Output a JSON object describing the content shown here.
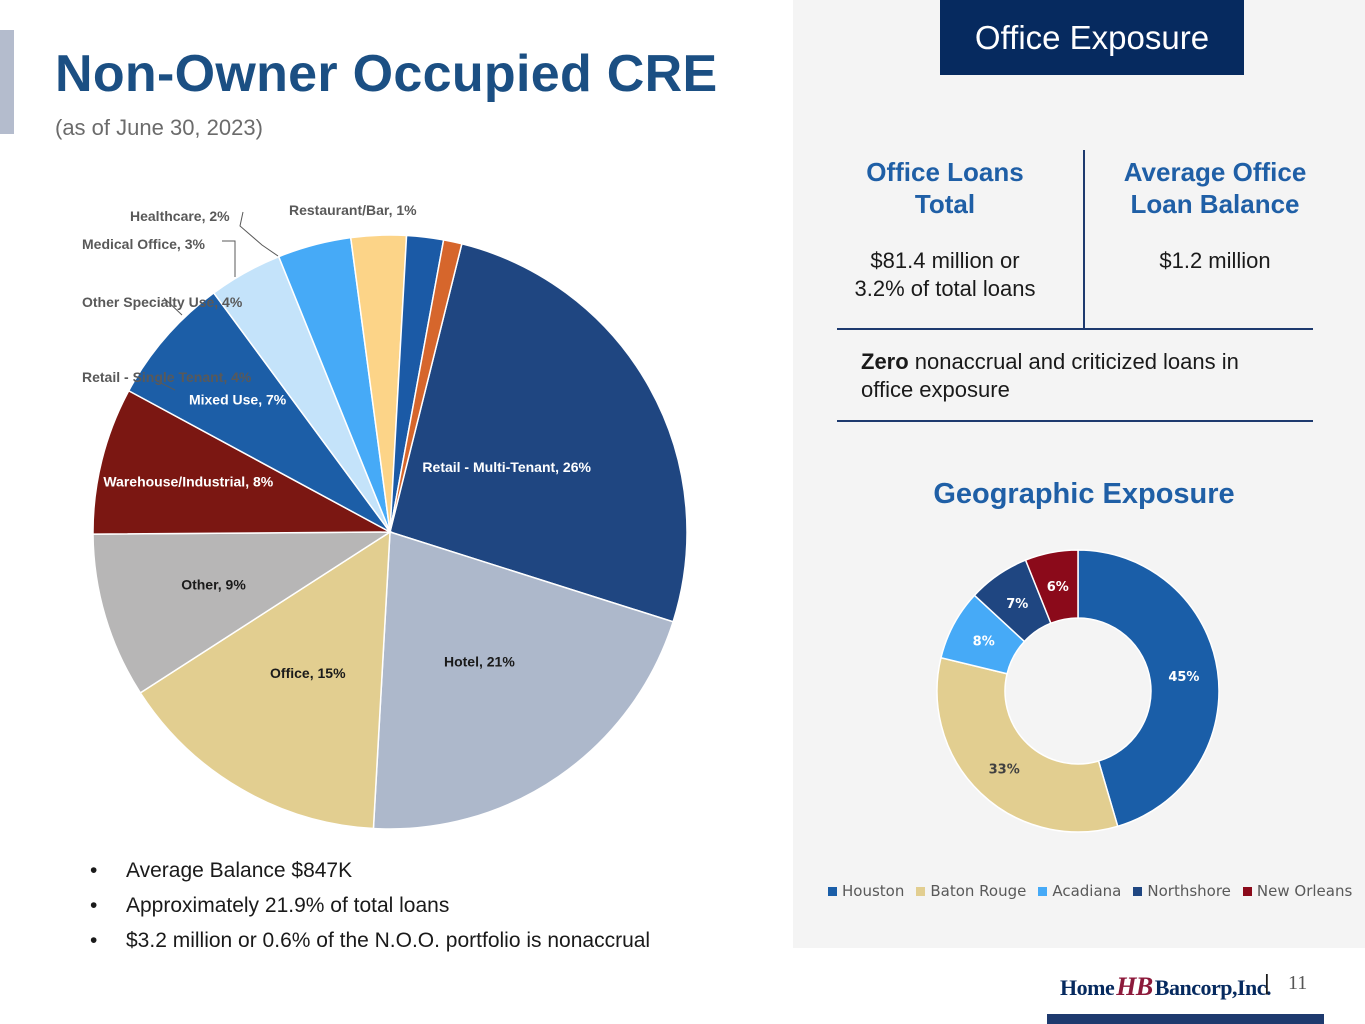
{
  "header": {
    "title": "Non-Owner Occupied CRE",
    "subtitle": "(as of June 30, 2023)"
  },
  "chart_data": [
    {
      "type": "pie",
      "title": "Non-Owner Occupied CRE",
      "categories": [
        "Retail - Multi-Tenant",
        "Hotel",
        "Office",
        "Other",
        "Warehouse/Industrial",
        "Mixed Use",
        "Retail - Single Tenant",
        "Other Specialty Use",
        "Medical Office",
        "Healthcare",
        "Restaurant/Bar"
      ],
      "values": [
        26,
        21,
        15,
        9,
        8,
        7,
        4,
        4,
        3,
        2,
        1
      ],
      "labels": [
        "Retail - Multi-Tenant, 26%",
        "Hotel, 21%",
        "Office, 15%",
        "Other, 9%",
        "Warehouse/Industrial, 8%",
        "Mixed Use, 7%",
        "Retail - Single Tenant, 4%",
        "Other Specialty Use, 4%",
        "Medical Office, 3%",
        "Healthcare, 2%",
        "Restaurant/Bar, 1%"
      ],
      "colors": [
        "#1f4681",
        "#adb8cb",
        "#e2ce90",
        "#b7b6b6",
        "#7b1712",
        "#1c5ea7",
        "#c4e3fa",
        "#46aaf7",
        "#fcd488",
        "#1b5aa6",
        "#d6662c"
      ]
    },
    {
      "type": "pie",
      "title": "Geographic Exposure",
      "categories": [
        "Houston",
        "Baton Rouge",
        "Acadiana",
        "Northshore",
        "New Orleans"
      ],
      "values": [
        45,
        33,
        8,
        7,
        6
      ],
      "labels": [
        "45%",
        "33%",
        "8%",
        "7%",
        "6%"
      ],
      "colors": [
        "#1a5ea8",
        "#e2ce90",
        "#46aaf7",
        "#1f4681",
        "#8b0a1a"
      ]
    }
  ],
  "bullets": [
    "Average Balance $847K",
    "Approximately 21.9% of total loans",
    "$3.2 million or 0.6% of the N.O.O. portfolio is nonaccrual"
  ],
  "office": {
    "tab_label": "Office Exposure",
    "col1_head_l1": "Office Loans",
    "col1_head_l2": "Total",
    "col1_val_l1": "$81.4 million or",
    "col1_val_l2": "3.2% of total loans",
    "col2_head_l1": "Average Office",
    "col2_head_l2": "Loan Balance",
    "col2_val": "$1.2 million",
    "zero_bold": "Zero",
    "zero_rest": " nonaccrual and criticized loans in office exposure"
  },
  "geo_title": "Geographic Exposure",
  "footer": {
    "logo_home": "Home",
    "logo_mark": "HB",
    "logo_bancorp": "Bancorp,Inc.",
    "separator": "|",
    "page_number": "11"
  }
}
